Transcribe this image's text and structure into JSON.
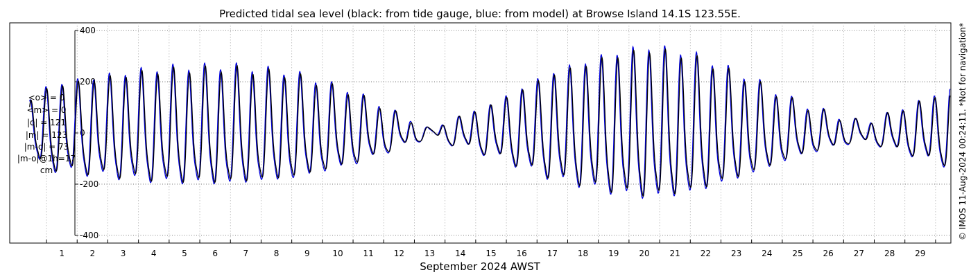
{
  "chart_data": {
    "type": "line",
    "title": "Predicted tidal sea level (black: from tide gauge, blue: from model) at Browse Island 14.1S 123.55E.",
    "xlabel": "September 2024 AWST",
    "ylabel": "",
    "ylim": [
      -430,
      430
    ],
    "xlim": [
      -0.7,
      30.0
    ],
    "x_ticks": [
      1,
      2,
      3,
      4,
      5,
      6,
      7,
      8,
      9,
      10,
      11,
      12,
      13,
      14,
      15,
      16,
      17,
      18,
      19,
      20,
      21,
      22,
      23,
      24,
      25,
      26,
      27,
      28,
      29
    ],
    "x_tick_labels": [
      "1",
      "2",
      "3",
      "4",
      "5",
      "6",
      "7",
      "8",
      "9",
      "10",
      "11",
      "12",
      "13",
      "14",
      "15",
      "16",
      "17",
      "18",
      "19",
      "20",
      "21",
      "22",
      "23",
      "24",
      "25",
      "26",
      "27",
      "28",
      "29"
    ],
    "y_ticks": [
      -400,
      -200,
      0,
      200,
      400
    ],
    "y_tick_labels": [
      "-400",
      "-200",
      "0",
      "200",
      "400"
    ],
    "grid": true,
    "line_colors": {
      "gauge": "#000000",
      "model": "#0000dd"
    },
    "series": [],
    "amplitude_envelope": {
      "x": [
        -0.7,
        0.6,
        3.5,
        4.5,
        6.5,
        8.5,
        10.5,
        12.3,
        13.0,
        13.8,
        15.0,
        17.0,
        19.0,
        20.2,
        21.5,
        23.5,
        25.0,
        26.7,
        27.3,
        28.5,
        30.0
      ],
      "amplitude": [
        60,
        150,
        195,
        205,
        210,
        190,
        130,
        45,
        10,
        45,
        90,
        190,
        250,
        270,
        250,
        170,
        95,
        40,
        35,
        80,
        140
      ]
    }
  },
  "stats": [
    "<o> = 0",
    "<m> = 0",
    "|o| = 121",
    "|m| = 123",
    "|m-o| = 73",
    "|m-o|@1h=17",
    "cm"
  ],
  "credit": "© IMOS 11-Aug-2024 00:24:11. *Not for navigation*"
}
